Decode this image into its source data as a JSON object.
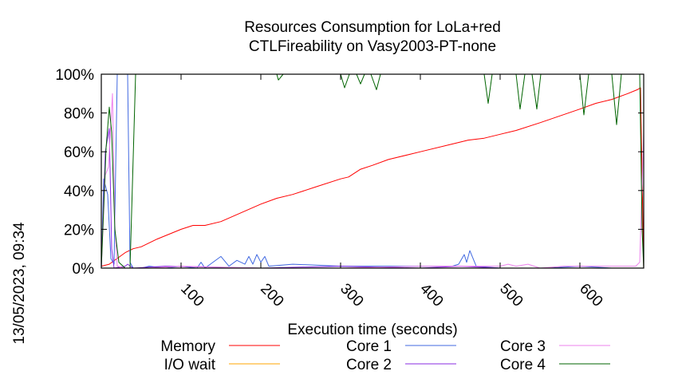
{
  "chart_data": {
    "type": "line",
    "title_line1": "Resources Consumption for LoLa+red",
    "title_line2": "CTLFireability on Vasy2003-PT-none",
    "xlabel": "Execution time (seconds)",
    "ylabel": "",
    "timestamp": "13/05/2023, 09:34",
    "xlim": [
      0,
      680
    ],
    "ylim": [
      0,
      100
    ],
    "x_ticks": [
      100,
      200,
      300,
      400,
      500,
      600
    ],
    "y_ticks": [
      {
        "value": 0,
        "label": "0%"
      },
      {
        "value": 20,
        "label": "20%"
      },
      {
        "value": 40,
        "label": "40%"
      },
      {
        "value": 60,
        "label": "60%"
      },
      {
        "value": 80,
        "label": "80%"
      },
      {
        "value": 100,
        "label": "100%"
      }
    ],
    "grid": false,
    "legend_position": "bottom",
    "series": [
      {
        "name": "Memory",
        "color": "#ff0000",
        "points": [
          [
            0,
            1
          ],
          [
            10,
            2
          ],
          [
            20,
            5
          ],
          [
            30,
            8
          ],
          [
            40,
            10
          ],
          [
            50,
            11
          ],
          [
            70,
            15
          ],
          [
            100,
            20
          ],
          [
            115,
            22
          ],
          [
            130,
            22
          ],
          [
            150,
            24
          ],
          [
            200,
            33
          ],
          [
            220,
            36
          ],
          [
            240,
            38
          ],
          [
            270,
            42
          ],
          [
            300,
            46
          ],
          [
            310,
            47
          ],
          [
            325,
            51
          ],
          [
            340,
            53
          ],
          [
            360,
            56
          ],
          [
            400,
            60
          ],
          [
            440,
            64
          ],
          [
            460,
            66
          ],
          [
            480,
            67
          ],
          [
            500,
            69
          ],
          [
            520,
            71
          ],
          [
            550,
            75
          ],
          [
            600,
            82
          ],
          [
            620,
            85
          ],
          [
            640,
            87
          ],
          [
            660,
            90
          ],
          [
            672,
            92
          ],
          [
            676,
            93
          ],
          [
            680,
            0
          ]
        ]
      },
      {
        "name": "I/O wait",
        "color": "#ffa500",
        "points": [
          [
            0,
            0
          ],
          [
            680,
            0
          ]
        ]
      },
      {
        "name": "Core 1",
        "color": "#4169e1",
        "points": [
          [
            0,
            0
          ],
          [
            3,
            46
          ],
          [
            8,
            38
          ],
          [
            12,
            5
          ],
          [
            16,
            2
          ],
          [
            20,
            100
          ],
          [
            25,
            100
          ],
          [
            33,
            100
          ],
          [
            36,
            3
          ],
          [
            40,
            0
          ],
          [
            50,
            0
          ],
          [
            60,
            1
          ],
          [
            80,
            0
          ],
          [
            100,
            1
          ],
          [
            120,
            0
          ],
          [
            125,
            3
          ],
          [
            130,
            0
          ],
          [
            150,
            6
          ],
          [
            160,
            1
          ],
          [
            170,
            4
          ],
          [
            180,
            2
          ],
          [
            185,
            6
          ],
          [
            190,
            2
          ],
          [
            195,
            7
          ],
          [
            200,
            3
          ],
          [
            205,
            6
          ],
          [
            210,
            1
          ],
          [
            240,
            2
          ],
          [
            300,
            1
          ],
          [
            400,
            1
          ],
          [
            420,
            1
          ],
          [
            440,
            1
          ],
          [
            448,
            2
          ],
          [
            455,
            7
          ],
          [
            458,
            3
          ],
          [
            462,
            9
          ],
          [
            470,
            1
          ],
          [
            500,
            0
          ],
          [
            560,
            0
          ],
          [
            600,
            1
          ],
          [
            640,
            0
          ],
          [
            680,
            0
          ]
        ]
      },
      {
        "name": "Core 2",
        "color": "#8a2be2",
        "points": [
          [
            0,
            0
          ],
          [
            5,
            60
          ],
          [
            10,
            72
          ],
          [
            13,
            10
          ],
          [
            16,
            0
          ],
          [
            30,
            1
          ],
          [
            33,
            2
          ],
          [
            40,
            0
          ],
          [
            80,
            1
          ],
          [
            200,
            0
          ],
          [
            300,
            1
          ],
          [
            400,
            0
          ],
          [
            450,
            1
          ],
          [
            500,
            0
          ],
          [
            600,
            0
          ],
          [
            680,
            0
          ]
        ]
      },
      {
        "name": "Core 3",
        "color": "#ee82ee",
        "points": [
          [
            0,
            0
          ],
          [
            5,
            48
          ],
          [
            9,
            52
          ],
          [
            14,
            90
          ],
          [
            17,
            22
          ],
          [
            20,
            1
          ],
          [
            30,
            0
          ],
          [
            60,
            0
          ],
          [
            100,
            1
          ],
          [
            200,
            0
          ],
          [
            300,
            0
          ],
          [
            400,
            1
          ],
          [
            500,
            1
          ],
          [
            510,
            2
          ],
          [
            520,
            1
          ],
          [
            535,
            2
          ],
          [
            550,
            0
          ],
          [
            580,
            1
          ],
          [
            600,
            1
          ],
          [
            640,
            1
          ],
          [
            670,
            1
          ],
          [
            675,
            3
          ],
          [
            680,
            70
          ]
        ]
      },
      {
        "name": "Core 4",
        "color": "#006400",
        "points": [
          [
            0,
            0
          ],
          [
            6,
            62
          ],
          [
            10,
            83
          ],
          [
            13,
            70
          ],
          [
            17,
            20
          ],
          [
            22,
            3
          ],
          [
            30,
            0
          ],
          [
            36,
            0
          ],
          [
            43,
            100
          ],
          [
            100,
            100
          ],
          [
            200,
            100
          ],
          [
            220,
            100
          ],
          [
            222,
            97
          ],
          [
            228,
            100
          ],
          [
            300,
            100
          ],
          [
            305,
            93
          ],
          [
            311,
            100
          ],
          [
            320,
            100
          ],
          [
            325,
            95
          ],
          [
            330,
            100
          ],
          [
            338,
            100
          ],
          [
            345,
            92
          ],
          [
            350,
            100
          ],
          [
            480,
            100
          ],
          [
            485,
            85
          ],
          [
            490,
            100
          ],
          [
            520,
            100
          ],
          [
            525,
            82
          ],
          [
            531,
            100
          ],
          [
            540,
            100
          ],
          [
            546,
            82
          ],
          [
            551,
            100
          ],
          [
            600,
            100
          ],
          [
            605,
            79
          ],
          [
            611,
            100
          ],
          [
            640,
            100
          ],
          [
            646,
            74
          ],
          [
            652,
            100
          ],
          [
            670,
            100
          ],
          [
            675,
            100
          ],
          [
            678,
            20
          ],
          [
            680,
            0
          ]
        ]
      }
    ]
  }
}
